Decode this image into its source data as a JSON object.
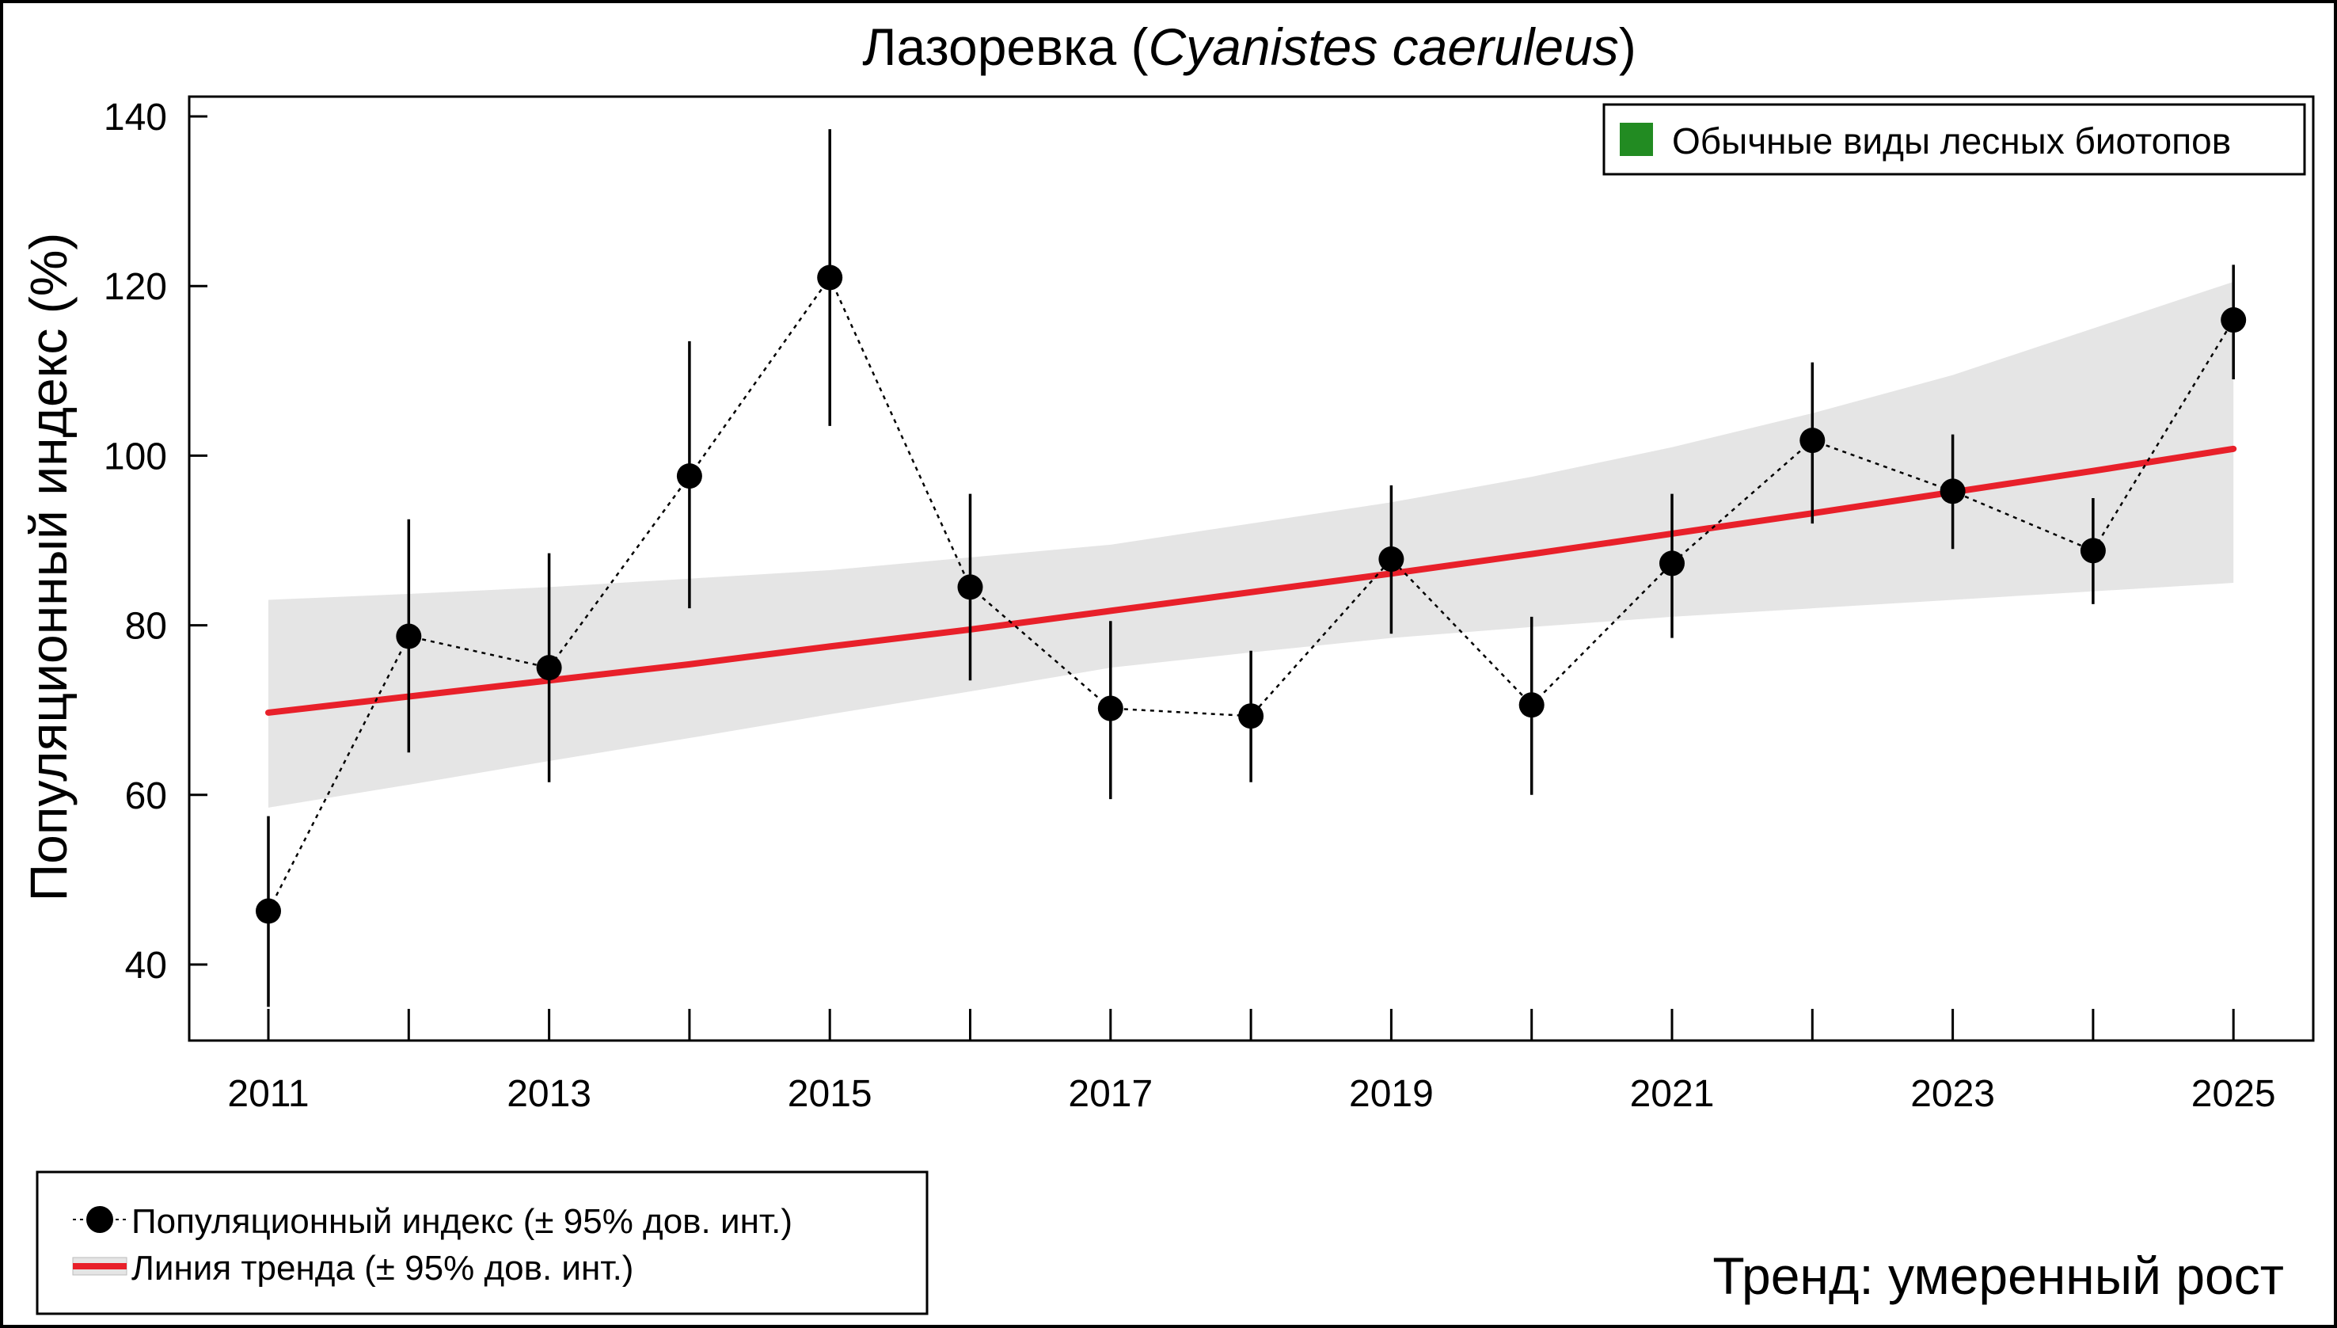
{
  "chart_data": {
    "type": "line",
    "title": "Лазоревка (",
    "title_italic": "Cyanistes caeruleus",
    "title_end": ")",
    "xlabel": "",
    "ylabel": "Популяционный индекс (%)",
    "x": [
      2011,
      2012,
      2013,
      2014,
      2015,
      2016,
      2017,
      2018,
      2019,
      2020,
      2021,
      2022,
      2023,
      2024,
      2025
    ],
    "x_tick_labels": [
      "2011",
      "2013",
      "2015",
      "2017",
      "2019",
      "2021",
      "2023",
      "2025"
    ],
    "y_tick_labels": [
      "40",
      "60",
      "80",
      "100",
      "120",
      "140"
    ],
    "ylim": [
      34,
      144
    ],
    "grid": false,
    "series": [
      {
        "name": "Популяционный индекс (± 95% дов. инт.)",
        "style": "points-dotted",
        "color": "#000000",
        "values": [
          46.3,
          78.7,
          75.0,
          97.6,
          121.0,
          84.5,
          70.2,
          69.3,
          87.8,
          70.6,
          87.3,
          101.8,
          95.8,
          88.8,
          116.0
        ],
        "ci_low": [
          35.0,
          65.0,
          61.5,
          82.0,
          103.5,
          73.5,
          59.5,
          61.5,
          79.0,
          60.0,
          78.5,
          92.0,
          89.0,
          82.5,
          109.0
        ],
        "ci_high": [
          57.5,
          92.5,
          88.5,
          113.5,
          138.5,
          95.5,
          80.5,
          77.0,
          96.5,
          81.0,
          95.5,
          111.0,
          102.5,
          95.0,
          122.5
        ]
      },
      {
        "name": "Линия тренда (± 95% дов. инт.)",
        "style": "line-band",
        "color": "#e8202a",
        "band_color": "#e5e5e5",
        "values": [
          69.7,
          71.6,
          73.5,
          75.4,
          77.5,
          79.5,
          81.7,
          83.9,
          86.1,
          88.4,
          90.8,
          93.2,
          95.7,
          98.2,
          100.8
        ],
        "band_low": [
          58.5,
          61.2,
          64.0,
          66.7,
          69.5,
          72.2,
          75.0,
          76.8,
          78.5,
          79.8,
          81.0,
          82.0,
          83.0,
          84.0,
          85.0
        ],
        "band_high": [
          83.0,
          83.7,
          84.5,
          85.5,
          86.5,
          88.0,
          89.5,
          92.0,
          94.5,
          97.5,
          101.0,
          105.0,
          109.5,
          115.0,
          120.5
        ]
      }
    ],
    "legend_placement": "bottom-left",
    "group_legend": {
      "label": "Обычные виды лесных биотопов",
      "color": "#228b22",
      "placement": "top-right"
    },
    "annotation": {
      "text": "Тренд: умеренный рост",
      "color": "#1a8c1a",
      "placement": "bottom-right"
    }
  }
}
